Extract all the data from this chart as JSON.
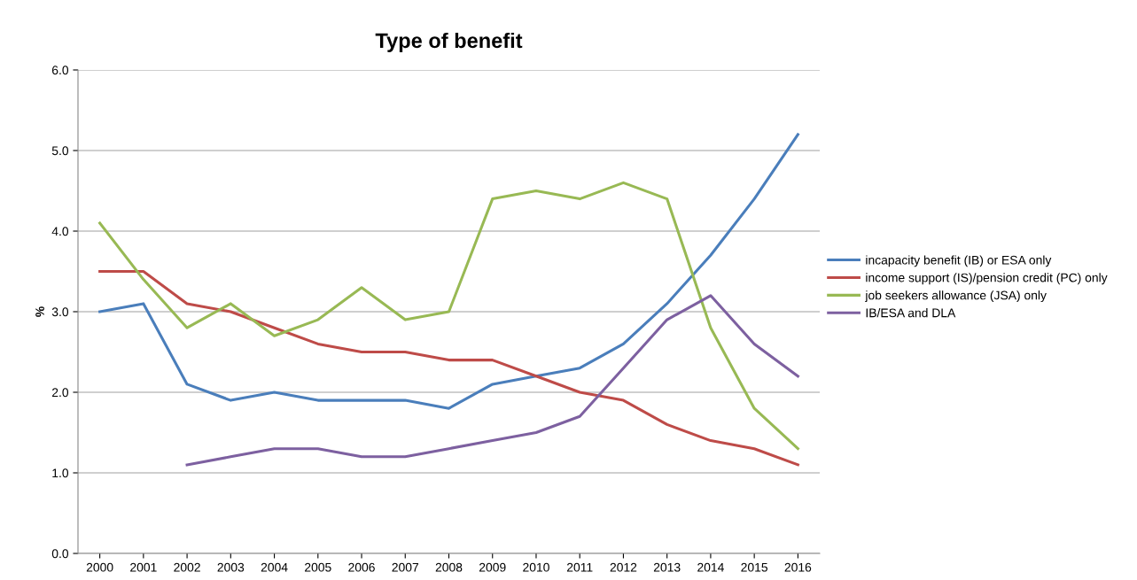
{
  "chart_data": {
    "type": "line",
    "title": "Type of benefit",
    "ylabel": "%",
    "categories": [
      "2000",
      "2001",
      "2002",
      "2003",
      "2004",
      "2005",
      "2006",
      "2007",
      "2008",
      "2009",
      "2010",
      "2011",
      "2012",
      "2013",
      "2014",
      "2015",
      "2016"
    ],
    "series": [
      {
        "name": "incapacity benefit (IB) or ESA only",
        "color": "#4a7ebb",
        "values": [
          3.0,
          3.1,
          2.1,
          1.9,
          2.0,
          1.9,
          1.9,
          1.9,
          1.8,
          2.1,
          2.2,
          2.3,
          2.6,
          3.1,
          3.7,
          4.4,
          5.2
        ]
      },
      {
        "name": "income support (IS)/pension credit (PC) only",
        "color": "#be4b48",
        "values": [
          3.5,
          3.5,
          3.1,
          3.0,
          2.8,
          2.6,
          2.5,
          2.5,
          2.4,
          2.4,
          2.2,
          2.0,
          1.9,
          1.6,
          1.4,
          1.3,
          1.1
        ]
      },
      {
        "name": "job seekers allowance (JSA) only",
        "color": "#98b954",
        "values": [
          4.1,
          3.4,
          2.8,
          3.1,
          2.7,
          2.9,
          3.3,
          2.9,
          3.0,
          4.4,
          4.5,
          4.4,
          4.6,
          4.4,
          2.8,
          1.8,
          1.3
        ]
      },
      {
        "name": "IB/ESA and DLA",
        "color": "#7d60a0",
        "values": [
          null,
          null,
          1.1,
          1.2,
          1.3,
          1.3,
          1.2,
          1.2,
          1.3,
          1.4,
          1.5,
          1.7,
          2.3,
          2.9,
          3.2,
          2.6,
          2.2
        ]
      }
    ],
    "ylim": [
      0,
      6
    ],
    "yticks": [
      {
        "value": 0,
        "label": "0.0"
      },
      {
        "value": 1,
        "label": "1.0"
      },
      {
        "value": 2,
        "label": "2.0"
      },
      {
        "value": 3,
        "label": "3.0"
      },
      {
        "value": 4,
        "label": "4.0"
      },
      {
        "value": 5,
        "label": "5.0"
      },
      {
        "value": 6,
        "label": "6.0"
      }
    ],
    "grid": "y",
    "legend": "right",
    "marker": "none",
    "line_style": "solid"
  }
}
